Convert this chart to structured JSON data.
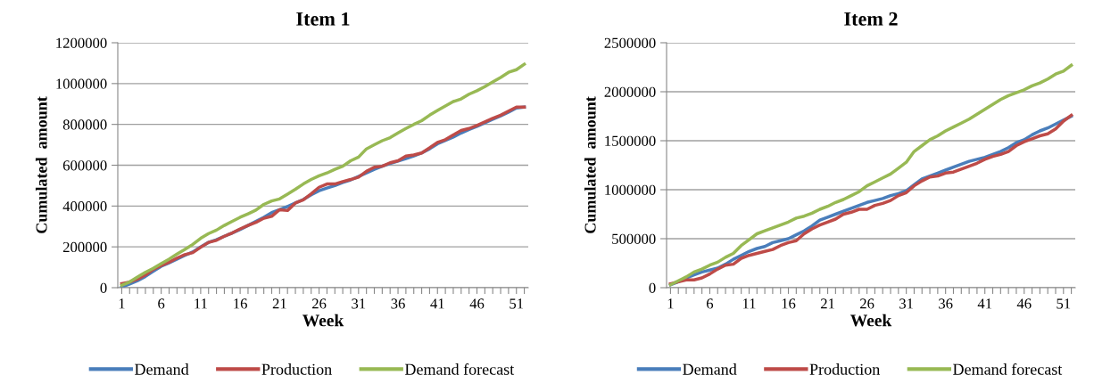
{
  "chart_data": [
    {
      "type": "line",
      "title": "Item 1",
      "xlabel": "Week",
      "ylabel": "Cumulated  amount",
      "categories": [
        "1",
        null,
        null,
        null,
        null,
        "6",
        null,
        null,
        null,
        null,
        "11",
        null,
        null,
        null,
        null,
        "16",
        null,
        null,
        null,
        null,
        "21",
        null,
        null,
        null,
        null,
        "26",
        null,
        null,
        null,
        null,
        "31",
        null,
        null,
        null,
        null,
        "36",
        null,
        null,
        null,
        null,
        "41",
        null,
        null,
        null,
        null,
        "46",
        null,
        null,
        null,
        null,
        "51",
        null
      ],
      "ylim": [
        0,
        1200000
      ],
      "yticks": [
        0,
        200000,
        400000,
        600000,
        800000,
        1000000,
        1200000
      ],
      "grid": "y",
      "legend": "bottom",
      "line_style": "solid",
      "marker": "none",
      "series": [
        {
          "name": "Demand",
          "color": "#4a7ebb",
          "values": [
            3000,
            18000,
            34000,
            55000,
            80000,
            105000,
            122000,
            140000,
            158000,
            175000,
            200000,
            222000,
            235000,
            252000,
            268000,
            285000,
            305000,
            325000,
            345000,
            368000,
            382000,
            398000,
            415000,
            432000,
            455000,
            475000,
            488000,
            500000,
            515000,
            528000,
            545000,
            562000,
            580000,
            595000,
            608000,
            620000,
            632000,
            645000,
            660000,
            680000,
            705000,
            722000,
            738000,
            758000,
            775000,
            790000,
            808000,
            825000,
            842000,
            860000,
            880000,
            885000
          ]
        },
        {
          "name": "Production",
          "color": "#be4b48",
          "values": [
            20000,
            28000,
            42000,
            62000,
            90000,
            108000,
            125000,
            145000,
            162000,
            172000,
            198000,
            222000,
            232000,
            252000,
            268000,
            288000,
            305000,
            320000,
            340000,
            350000,
            382000,
            378000,
            415000,
            430000,
            460000,
            492000,
            508000,
            508000,
            520000,
            530000,
            542000,
            570000,
            590000,
            595000,
            612000,
            622000,
            645000,
            650000,
            660000,
            685000,
            712000,
            725000,
            748000,
            770000,
            780000,
            795000,
            812000,
            830000,
            845000,
            865000,
            885000,
            885000
          ]
        },
        {
          "name": "Demand forecast",
          "color": "#98b954",
          "values": [
            12000,
            28000,
            52000,
            75000,
            95000,
            118000,
            140000,
            165000,
            188000,
            212000,
            242000,
            265000,
            282000,
            305000,
            325000,
            345000,
            362000,
            380000,
            408000,
            425000,
            435000,
            458000,
            482000,
            508000,
            530000,
            548000,
            562000,
            580000,
            595000,
            622000,
            640000,
            680000,
            700000,
            720000,
            735000,
            758000,
            780000,
            800000,
            818000,
            845000,
            868000,
            890000,
            912000,
            925000,
            948000,
            965000,
            985000,
            1008000,
            1030000,
            1055000,
            1068000,
            1095000
          ]
        }
      ]
    },
    {
      "type": "line",
      "title": "Item 2",
      "xlabel": "Week",
      "ylabel": "Cumulated  amount",
      "categories": [
        "1",
        null,
        null,
        null,
        null,
        "6",
        null,
        null,
        null,
        null,
        "11",
        null,
        null,
        null,
        null,
        "16",
        null,
        null,
        null,
        null,
        "21",
        null,
        null,
        null,
        null,
        "26",
        null,
        null,
        null,
        null,
        "31",
        null,
        null,
        null,
        null,
        "36",
        null,
        null,
        null,
        null,
        "41",
        null,
        null,
        null,
        null,
        "46",
        null,
        null,
        null,
        null,
        "51",
        null
      ],
      "ylim": [
        0,
        2500000
      ],
      "yticks": [
        0,
        500000,
        1000000,
        1500000,
        2000000,
        2500000
      ],
      "grid": "y",
      "legend": "bottom",
      "line_style": "solid",
      "marker": "none",
      "series": [
        {
          "name": "Demand",
          "color": "#4a7ebb",
          "values": [
            30000,
            60000,
            100000,
            130000,
            160000,
            180000,
            200000,
            240000,
            290000,
            330000,
            370000,
            400000,
            420000,
            460000,
            480000,
            500000,
            540000,
            580000,
            630000,
            690000,
            720000,
            750000,
            780000,
            810000,
            840000,
            870000,
            890000,
            910000,
            940000,
            960000,
            990000,
            1050000,
            1110000,
            1140000,
            1170000,
            1200000,
            1230000,
            1260000,
            1290000,
            1310000,
            1330000,
            1360000,
            1390000,
            1430000,
            1480000,
            1510000,
            1560000,
            1600000,
            1630000,
            1670000,
            1710000,
            1750000
          ]
        },
        {
          "name": "Production",
          "color": "#be4b48",
          "values": [
            40000,
            60000,
            80000,
            80000,
            100000,
            140000,
            190000,
            230000,
            240000,
            300000,
            330000,
            350000,
            370000,
            390000,
            430000,
            460000,
            480000,
            550000,
            600000,
            640000,
            670000,
            700000,
            750000,
            770000,
            800000,
            800000,
            840000,
            860000,
            890000,
            940000,
            970000,
            1040000,
            1090000,
            1130000,
            1140000,
            1170000,
            1180000,
            1210000,
            1240000,
            1270000,
            1310000,
            1340000,
            1360000,
            1390000,
            1450000,
            1490000,
            1520000,
            1550000,
            1570000,
            1620000,
            1700000,
            1760000
          ]
        },
        {
          "name": "Demand forecast",
          "color": "#98b954",
          "values": [
            30000,
            70000,
            110000,
            160000,
            190000,
            230000,
            260000,
            310000,
            350000,
            430000,
            490000,
            550000,
            580000,
            610000,
            640000,
            670000,
            710000,
            730000,
            760000,
            800000,
            830000,
            870000,
            900000,
            940000,
            980000,
            1040000,
            1080000,
            1120000,
            1160000,
            1220000,
            1280000,
            1390000,
            1450000,
            1510000,
            1550000,
            1600000,
            1640000,
            1680000,
            1720000,
            1770000,
            1820000,
            1870000,
            1920000,
            1960000,
            1990000,
            2020000,
            2060000,
            2090000,
            2130000,
            2180000,
            2210000,
            2270000
          ]
        }
      ]
    }
  ]
}
